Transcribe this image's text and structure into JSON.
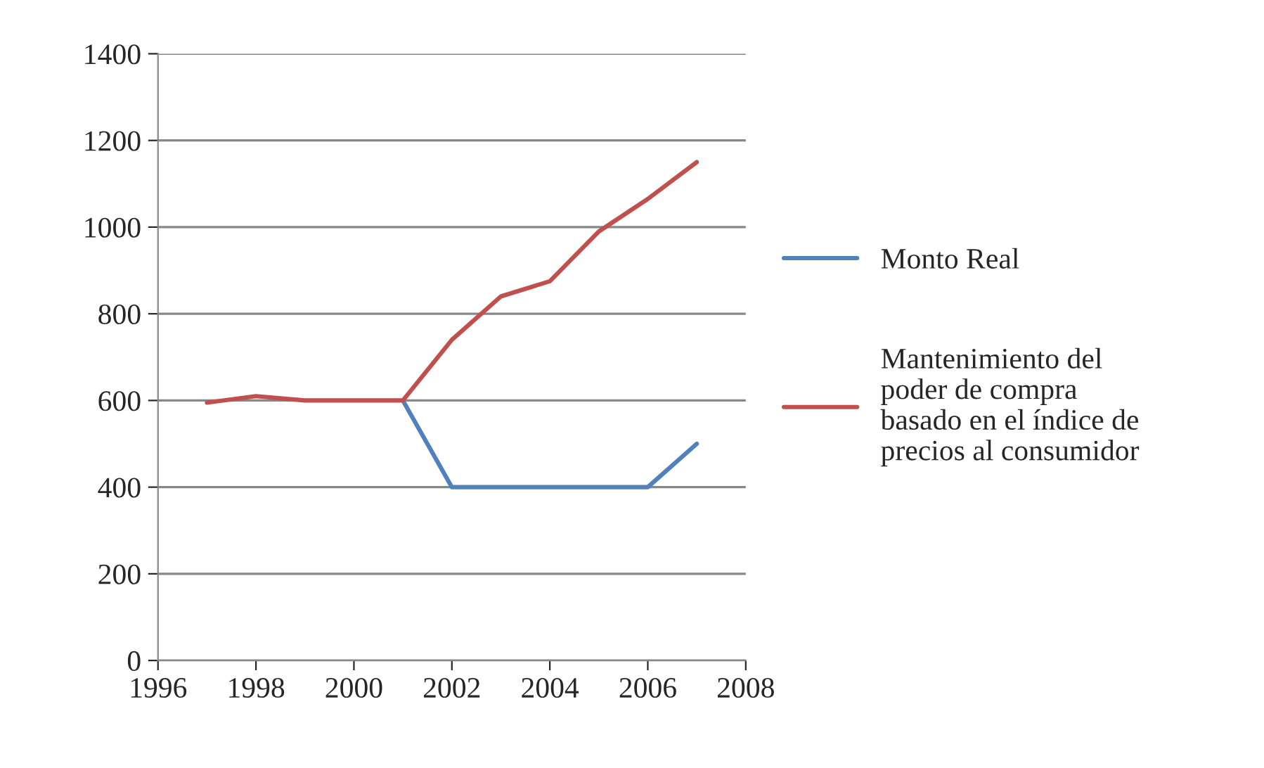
{
  "chart_data": {
    "type": "line",
    "x": [
      1997,
      1998,
      1999,
      2000,
      2001,
      2002,
      2003,
      2004,
      2005,
      2006,
      2007
    ],
    "series": [
      {
        "name": "Monto Real",
        "color": "#4f81bd",
        "values": [
          null,
          null,
          null,
          null,
          600,
          400,
          400,
          400,
          400,
          400,
          500
        ]
      },
      {
        "name": "Mantenimiento del poder de compra basado en el índice de precios al consumidor",
        "color": "#c0504d",
        "values": [
          595,
          610,
          600,
          600,
          600,
          740,
          840,
          875,
          990,
          1065,
          1150
        ]
      }
    ],
    "xlim": [
      1996,
      2008
    ],
    "xticks": [
      1996,
      1998,
      2000,
      2002,
      2004,
      2006,
      2008
    ],
    "ylim": [
      0,
      1400
    ],
    "yticks": [
      0,
      200,
      400,
      600,
      800,
      1000,
      1200,
      1400
    ],
    "grid": "y",
    "legend": "right"
  }
}
